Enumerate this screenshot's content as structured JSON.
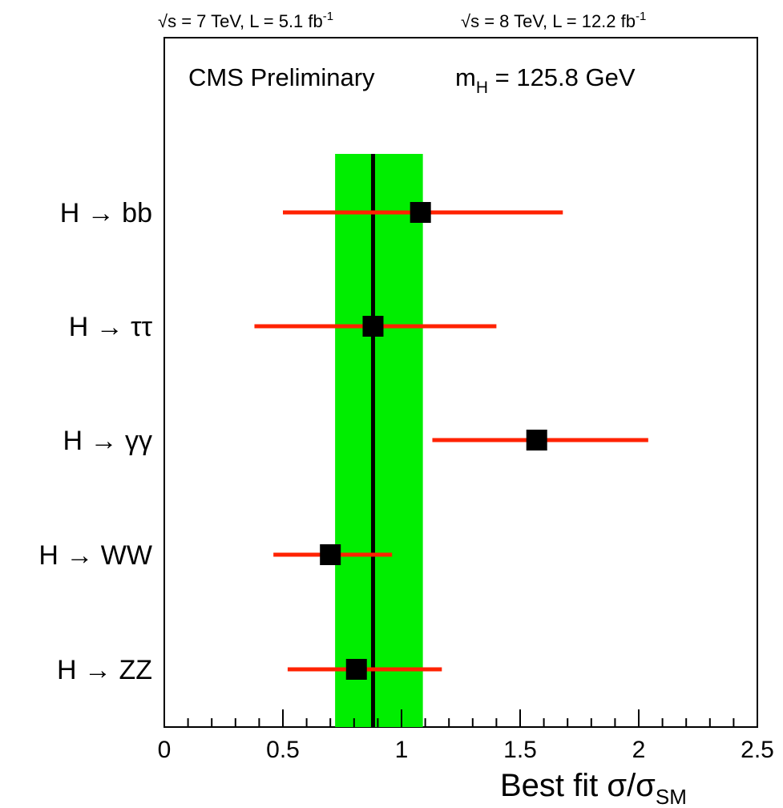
{
  "header": {
    "left_sqrt": "√s",
    "left_rest": " = 7 TeV, L =   5.1 fb",
    "left_sup": "-1",
    "right_sqrt": "√s",
    "right_rest": " = 8 TeV, L = 12.2 fb",
    "right_sup": "-1"
  },
  "legend": {
    "experiment": "CMS Preliminary",
    "mass_prefix": "m",
    "mass_sub": "H",
    "mass_value": " = 125.8 GeV"
  },
  "axis": {
    "xlabel_main": "Best fit σ/σ",
    "xlabel_sub": "SM"
  },
  "colors": {
    "band": "#00ee00",
    "error_bar": "#ff2200",
    "marker": "#000000",
    "combined_line": "#000000"
  },
  "chart_data": {
    "type": "scatter",
    "orientation": "horizontal",
    "xlim": [
      0,
      2.5
    ],
    "x_ticks": [
      {
        "value": 0,
        "label": "0"
      },
      {
        "value": 0.5,
        "label": "0.5"
      },
      {
        "value": 1,
        "label": "1"
      },
      {
        "value": 1.5,
        "label": "1.5"
      },
      {
        "value": 2,
        "label": "2"
      },
      {
        "value": 2.5,
        "label": "2.5"
      }
    ],
    "combined": {
      "value": 0.88,
      "band_low": 0.72,
      "band_high": 1.09
    },
    "channels": [
      {
        "label": "H → bb",
        "value": 1.08,
        "low": 0.5,
        "high": 1.68
      },
      {
        "label": "H → ττ",
        "value": 0.88,
        "low": 0.38,
        "high": 1.4
      },
      {
        "label": "H → γγ",
        "value": 1.57,
        "low": 1.13,
        "high": 2.04
      },
      {
        "label": "H → WW",
        "value": 0.7,
        "low": 0.46,
        "high": 0.96
      },
      {
        "label": "H → ZZ",
        "value": 0.81,
        "low": 0.52,
        "high": 1.17
      }
    ]
  }
}
